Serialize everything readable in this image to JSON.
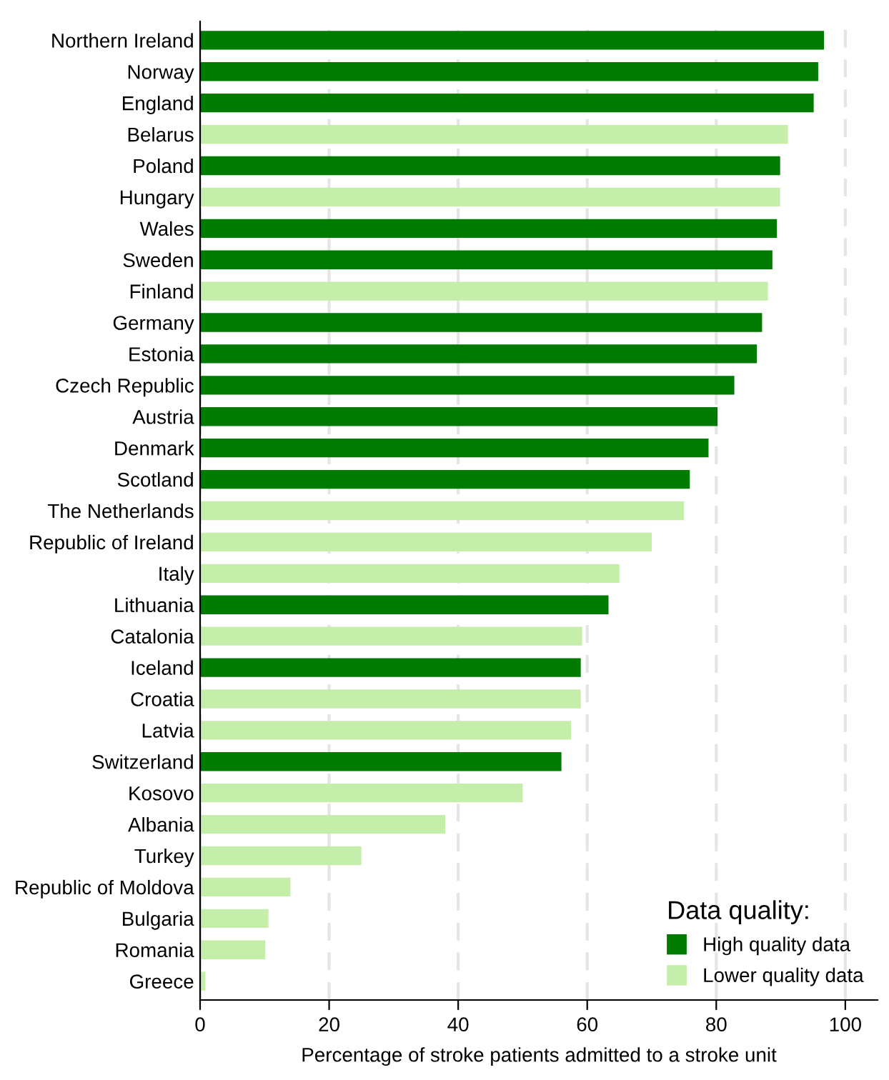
{
  "chart_data": {
    "type": "bar",
    "orientation": "horizontal",
    "xlabel": "Percentage of stroke patients admitted to a stroke unit",
    "legend_title": "Data quality:",
    "categories": [
      "Northern Ireland",
      "Norway",
      "England",
      "Belarus",
      "Poland",
      "Hungary",
      "Wales",
      "Sweden",
      "Finland",
      "Germany",
      "Estonia",
      "Czech Republic",
      "Austria",
      "Denmark",
      "Scotland",
      "The Netherlands",
      "Republic of Ireland",
      "Italy",
      "Lithuania",
      "Catalonia",
      "Iceland",
      "Croatia",
      "Latvia",
      "Switzerland",
      "Kosovo",
      "Albania",
      "Turkey",
      "Republic of Moldova",
      "Bulgaria",
      "Romania",
      "Greece"
    ],
    "series": [
      {
        "name": "High quality data",
        "color": "#007a00",
        "values": [
          96.7,
          95.8,
          95.1,
          null,
          89.9,
          null,
          89.4,
          88.7,
          null,
          87.1,
          86.3,
          82.8,
          80.2,
          78.8,
          75.9,
          null,
          null,
          null,
          63.3,
          null,
          59.0,
          null,
          null,
          56.0,
          null,
          null,
          null,
          null,
          null,
          null,
          null
        ]
      },
      {
        "name": "Lower quality data",
        "color": "#c5eeaa",
        "values": [
          null,
          null,
          null,
          91.1,
          null,
          89.9,
          null,
          null,
          88.0,
          null,
          null,
          null,
          null,
          null,
          null,
          75.0,
          70.0,
          65.0,
          null,
          59.2,
          null,
          59.0,
          57.5,
          null,
          50.0,
          38.0,
          25.0,
          14.0,
          10.6,
          10.1,
          0.8
        ]
      }
    ],
    "xlim": [
      0,
      105
    ],
    "xticks": [
      0,
      20,
      40,
      60,
      80,
      100
    ],
    "grid": "x",
    "legend": "bottom right"
  }
}
